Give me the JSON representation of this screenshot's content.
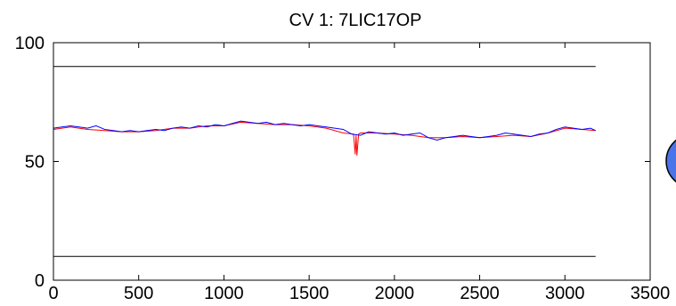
{
  "chart_data": {
    "type": "line",
    "title": "CV 1: 7LIC17OP",
    "xlabel": "",
    "ylabel": "",
    "xlim": [
      0,
      3500
    ],
    "ylim": [
      0,
      100
    ],
    "xticks": [
      0,
      500,
      1000,
      1500,
      2000,
      2500,
      3000,
      3500
    ],
    "yticks": [
      0,
      50,
      100
    ],
    "xtick_labels": [
      "0",
      "500",
      "1000",
      "1500",
      "2000",
      "2500",
      "3000",
      "3500"
    ],
    "ytick_labels": [
      "0",
      "50",
      "100"
    ],
    "grid": false,
    "legend": "none",
    "limits": [
      {
        "role": "upper-limit",
        "x": [
          0,
          3180
        ],
        "y": [
          90,
          90
        ],
        "color": "#000000"
      },
      {
        "role": "lower-limit",
        "x": [
          0,
          3180
        ],
        "y": [
          10,
          10
        ],
        "color": "#000000"
      }
    ],
    "series": [
      {
        "role": "measured",
        "color": "#0000ff",
        "x": [
          0,
          50,
          100,
          150,
          200,
          250,
          300,
          350,
          400,
          450,
          500,
          550,
          600,
          650,
          700,
          750,
          800,
          850,
          900,
          950,
          1000,
          1050,
          1100,
          1150,
          1200,
          1250,
          1300,
          1350,
          1400,
          1450,
          1500,
          1550,
          1600,
          1650,
          1700,
          1750,
          1800,
          1850,
          1900,
          1950,
          2000,
          2050,
          2100,
          2150,
          2200,
          2250,
          2300,
          2350,
          2400,
          2450,
          2500,
          2550,
          2600,
          2650,
          2700,
          2750,
          2800,
          2850,
          2900,
          2950,
          3000,
          3050,
          3100,
          3150,
          3180
        ],
        "y": [
          64,
          64.5,
          65,
          64.5,
          64,
          65,
          63.5,
          63,
          62.5,
          63,
          62.5,
          63,
          63.5,
          63,
          64,
          64.5,
          64,
          65,
          64.5,
          65.5,
          65,
          66,
          67,
          66.5,
          66,
          66.5,
          65.5,
          66,
          65.5,
          65,
          65.5,
          65,
          64.5,
          64,
          63.5,
          61.5,
          61,
          62.5,
          62,
          61.5,
          62,
          61,
          61.5,
          62,
          60,
          59,
          60,
          60.5,
          61,
          60.5,
          60,
          60.5,
          61,
          62,
          61.5,
          61,
          60.5,
          61.5,
          62,
          63.5,
          64.5,
          64,
          63.5,
          64,
          63
        ]
      },
      {
        "role": "predicted",
        "color": "#ff0000",
        "x": [
          0,
          100,
          200,
          300,
          400,
          500,
          600,
          700,
          800,
          900,
          1000,
          1100,
          1200,
          1300,
          1400,
          1500,
          1600,
          1700,
          1760,
          1770,
          1775,
          1780,
          1790,
          1800,
          1900,
          2000,
          2100,
          2200,
          2300,
          2400,
          2500,
          2600,
          2700,
          2800,
          2900,
          3000,
          3100,
          3180
        ],
        "y": [
          63.5,
          64.5,
          63.5,
          63,
          62.5,
          62.5,
          63,
          64,
          64,
          65,
          65,
          66.5,
          66,
          65.5,
          65.5,
          65,
          64,
          62,
          61.5,
          53,
          61,
          52.5,
          61.5,
          62,
          62,
          61.5,
          61,
          60,
          60,
          60.5,
          60,
          60.5,
          61,
          60.5,
          62,
          64,
          63.5,
          63
        ]
      }
    ]
  },
  "indicator": {
    "color": "#4a74e8",
    "border": "#000000"
  }
}
